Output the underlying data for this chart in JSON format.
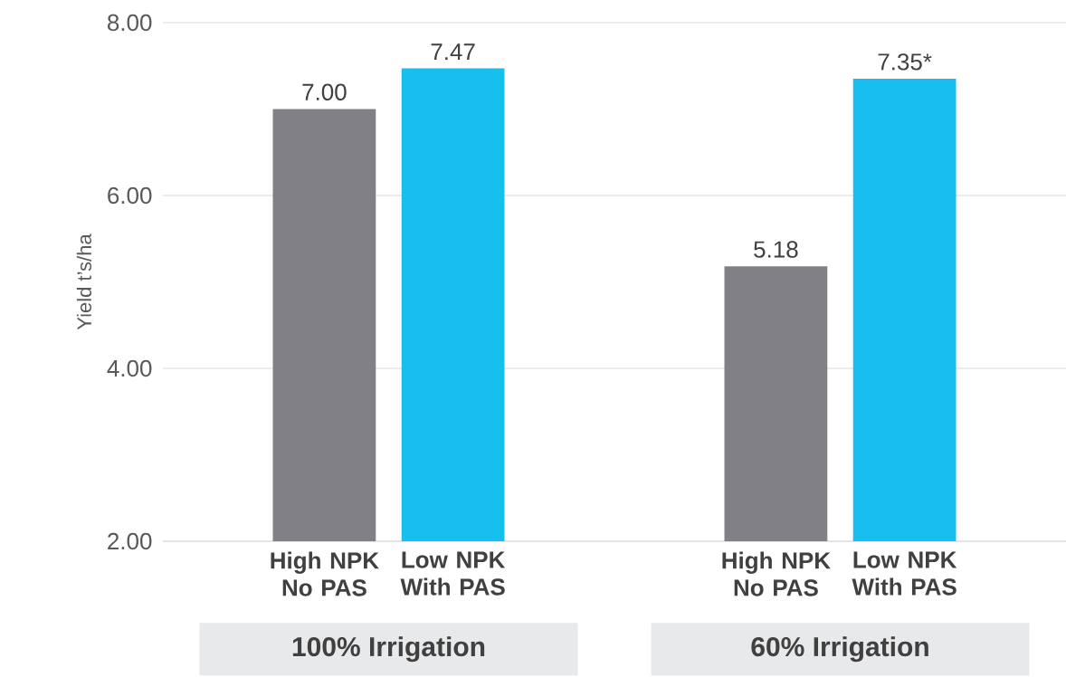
{
  "chart_data": {
    "type": "bar",
    "ylabel": "Yield t’s/ha",
    "categories": [
      "100% Irrigation",
      "60% Irrigation"
    ],
    "series": [
      {
        "name": "High NPK No PAS",
        "color": "#808085",
        "values": [
          7.0,
          5.18
        ],
        "value_labels": [
          "7.00",
          "5.18"
        ]
      },
      {
        "name": "Low NPK With PAS",
        "color": "#17bfef",
        "values": [
          7.47,
          7.35
        ],
        "value_labels": [
          "7.47",
          "7.35*"
        ]
      }
    ],
    "ylim": [
      2,
      8
    ],
    "yticks": [
      {
        "value": 2,
        "label": "2.00"
      },
      {
        "value": 4,
        "label": "4.00"
      },
      {
        "value": 6,
        "label": "6.00"
      },
      {
        "value": 8,
        "label": "8.00"
      }
    ],
    "grid": "y",
    "legend": false
  }
}
